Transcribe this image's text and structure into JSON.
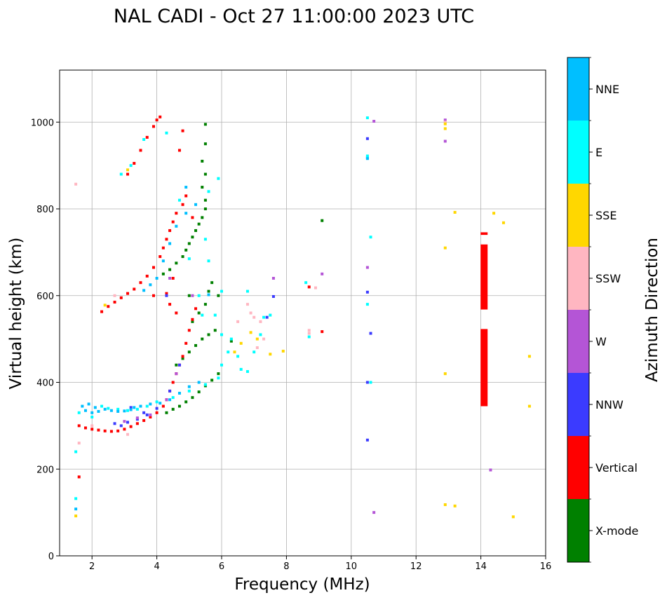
{
  "chart_data": {
    "type": "scatter",
    "title": "NAL CADI - Oct 27 11:00:00 2023 UTC",
    "xlabel": "Frequency (MHz)",
    "ylabel": "Virtual height (km)",
    "xlim": [
      1,
      16
    ],
    "ylim": [
      0,
      1120
    ],
    "xticks": [
      2,
      4,
      6,
      8,
      10,
      12,
      14,
      16
    ],
    "yticks": [
      0,
      200,
      400,
      600,
      800,
      1000
    ],
    "grid": true,
    "colorbar": {
      "label": "Azimuth Direction",
      "categories": [
        "X-mode",
        "Vertical",
        "NNW",
        "W",
        "SSW",
        "SSE",
        "E",
        "NNE"
      ],
      "colors": [
        "#008000",
        "#ff0000",
        "#3b3bff",
        "#b455d6",
        "#ffb6c1",
        "#ffd700",
        "#00ffff",
        "#00bfff"
      ]
    },
    "series": [
      {
        "name": "X-mode",
        "points": [
          [
            4.3,
            330
          ],
          [
            4.5,
            338
          ],
          [
            4.7,
            345
          ],
          [
            4.9,
            355
          ],
          [
            5.1,
            365
          ],
          [
            5.3,
            378
          ],
          [
            5.5,
            392
          ],
          [
            5.7,
            405
          ],
          [
            5.9,
            420
          ],
          [
            4.6,
            440
          ],
          [
            4.8,
            455
          ],
          [
            5.0,
            470
          ],
          [
            5.2,
            485
          ],
          [
            5.4,
            500
          ],
          [
            5.6,
            510
          ],
          [
            5.8,
            520
          ],
          [
            5.1,
            540
          ],
          [
            5.3,
            560
          ],
          [
            5.5,
            580
          ],
          [
            5.6,
            610
          ],
          [
            5.7,
            630
          ],
          [
            4.4,
            660
          ],
          [
            4.6,
            675
          ],
          [
            4.8,
            690
          ],
          [
            4.9,
            705
          ],
          [
            5.0,
            720
          ],
          [
            5.1,
            735
          ],
          [
            5.2,
            750
          ],
          [
            5.3,
            765
          ],
          [
            5.4,
            780
          ],
          [
            5.5,
            800
          ],
          [
            5.5,
            820
          ],
          [
            5.4,
            850
          ],
          [
            5.5,
            880
          ],
          [
            5.4,
            910
          ],
          [
            5.5,
            950
          ],
          [
            5.5,
            995
          ],
          [
            4.2,
            650
          ],
          [
            9.1,
            773
          ],
          [
            6.3,
            495
          ],
          [
            5.9,
            600
          ],
          [
            5.0,
            600
          ]
        ]
      },
      {
        "name": "Vertical",
        "points": [
          [
            1.6,
            300
          ],
          [
            1.8,
            295
          ],
          [
            2.0,
            292
          ],
          [
            2.2,
            290
          ],
          [
            2.4,
            288
          ],
          [
            2.6,
            287
          ],
          [
            2.8,
            288
          ],
          [
            3.0,
            292
          ],
          [
            3.2,
            298
          ],
          [
            3.4,
            305
          ],
          [
            3.6,
            312
          ],
          [
            3.8,
            320
          ],
          [
            4.0,
            330
          ],
          [
            4.2,
            345
          ],
          [
            4.3,
            360
          ],
          [
            4.4,
            380
          ],
          [
            4.5,
            400
          ],
          [
            4.6,
            420
          ],
          [
            4.7,
            440
          ],
          [
            4.8,
            460
          ],
          [
            4.9,
            490
          ],
          [
            5.0,
            520
          ],
          [
            5.1,
            545
          ],
          [
            5.2,
            570
          ],
          [
            4.4,
            580
          ],
          [
            4.6,
            560
          ],
          [
            2.3,
            563
          ],
          [
            2.5,
            575
          ],
          [
            2.7,
            585
          ],
          [
            2.9,
            595
          ],
          [
            3.1,
            605
          ],
          [
            3.3,
            615
          ],
          [
            3.5,
            630
          ],
          [
            3.7,
            645
          ],
          [
            3.9,
            665
          ],
          [
            4.1,
            690
          ],
          [
            4.2,
            710
          ],
          [
            4.3,
            730
          ],
          [
            4.4,
            750
          ],
          [
            4.5,
            770
          ],
          [
            4.6,
            790
          ],
          [
            4.8,
            810
          ],
          [
            4.9,
            830
          ],
          [
            3.1,
            880
          ],
          [
            3.3,
            905
          ],
          [
            3.5,
            935
          ],
          [
            3.7,
            965
          ],
          [
            3.9,
            990
          ],
          [
            4.0,
            1005
          ],
          [
            4.1,
            1012
          ],
          [
            4.7,
            935
          ],
          [
            4.8,
            980
          ],
          [
            1.6,
            182
          ],
          [
            8.7,
            620
          ],
          [
            9.1,
            517
          ],
          [
            5.1,
            780
          ],
          [
            4.3,
            605
          ],
          [
            3.9,
            600
          ],
          [
            4.5,
            640
          ]
        ]
      },
      {
        "name": "NNW",
        "points": [
          [
            2.7,
            305
          ],
          [
            2.9,
            300
          ],
          [
            3.1,
            308
          ],
          [
            3.4,
            315
          ],
          [
            3.7,
            325
          ],
          [
            4.0,
            340
          ],
          [
            4.4,
            380
          ],
          [
            4.7,
            440
          ],
          [
            4.3,
            600
          ],
          [
            10.5,
            918
          ],
          [
            10.5,
            962
          ],
          [
            10.5,
            608
          ],
          [
            10.6,
            513
          ],
          [
            10.5,
            400
          ],
          [
            10.5,
            267
          ],
          [
            7.6,
            598
          ],
          [
            7.4,
            550
          ],
          [
            3.2,
            342
          ],
          [
            3.6,
            330
          ]
        ]
      },
      {
        "name": "W",
        "points": [
          [
            3.0,
            310
          ],
          [
            3.4,
            318
          ],
          [
            3.8,
            325
          ],
          [
            4.3,
            360
          ],
          [
            4.6,
            420
          ],
          [
            5.1,
            600
          ],
          [
            9.1,
            650
          ],
          [
            10.5,
            665
          ],
          [
            12.9,
            1005
          ],
          [
            12.9,
            956
          ],
          [
            14.3,
            198
          ],
          [
            10.7,
            100
          ],
          [
            10.7,
            1002
          ],
          [
            7.6,
            640
          ],
          [
            4.4,
            640
          ]
        ]
      },
      {
        "name": "SSW",
        "points": [
          [
            1.5,
            857
          ],
          [
            1.6,
            260
          ],
          [
            2.0,
            300
          ],
          [
            3.1,
            280
          ],
          [
            6.8,
            580
          ],
          [
            6.9,
            560
          ],
          [
            7.0,
            550
          ],
          [
            7.2,
            540
          ],
          [
            7.3,
            500
          ],
          [
            7.1,
            480
          ],
          [
            8.7,
            520
          ],
          [
            8.7,
            513
          ],
          [
            8.9,
            618
          ],
          [
            2.7,
            600
          ],
          [
            6.5,
            540
          ],
          [
            12.9,
            1000
          ]
        ]
      },
      {
        "name": "SSE",
        "points": [
          [
            1.5,
            92
          ],
          [
            2.4,
            578
          ],
          [
            6.6,
            490
          ],
          [
            6.9,
            515
          ],
          [
            7.1,
            500
          ],
          [
            7.5,
            465
          ],
          [
            7.9,
            472
          ],
          [
            12.9,
            420
          ],
          [
            12.9,
            710
          ],
          [
            13.2,
            792
          ],
          [
            14.4,
            790
          ],
          [
            14.7,
            768
          ],
          [
            15.5,
            460
          ],
          [
            15.5,
            345
          ],
          [
            12.9,
            118
          ],
          [
            13.2,
            115
          ],
          [
            15.0,
            90
          ],
          [
            12.9,
            985
          ],
          [
            12.9,
            996
          ],
          [
            6.4,
            470
          ],
          [
            3.1,
            890
          ]
        ]
      },
      {
        "name": "E",
        "points": [
          [
            1.6,
            330
          ],
          [
            2.0,
            320
          ],
          [
            2.3,
            345
          ],
          [
            2.5,
            340
          ],
          [
            2.8,
            338
          ],
          [
            3.1,
            335
          ],
          [
            3.4,
            338
          ],
          [
            3.7,
            345
          ],
          [
            4.0,
            355
          ],
          [
            4.5,
            365
          ],
          [
            5.0,
            380
          ],
          [
            5.5,
            395
          ],
          [
            5.9,
            410
          ],
          [
            6.0,
            440
          ],
          [
            6.2,
            470
          ],
          [
            6.3,
            500
          ],
          [
            6.5,
            460
          ],
          [
            6.6,
            430
          ],
          [
            6.8,
            425
          ],
          [
            7.0,
            470
          ],
          [
            7.2,
            510
          ],
          [
            7.3,
            550
          ],
          [
            7.5,
            555
          ],
          [
            6.0,
            510
          ],
          [
            5.8,
            555
          ],
          [
            5.4,
            555
          ],
          [
            5.3,
            600
          ],
          [
            6.0,
            610
          ],
          [
            6.8,
            610
          ],
          [
            2.9,
            880
          ],
          [
            3.2,
            900
          ],
          [
            3.6,
            960
          ],
          [
            4.3,
            975
          ],
          [
            4.7,
            820
          ],
          [
            5.6,
            840
          ],
          [
            5.9,
            870
          ],
          [
            8.6,
            630
          ],
          [
            8.7,
            505
          ],
          [
            10.5,
            922
          ],
          [
            10.5,
            580
          ],
          [
            10.5,
            1010
          ],
          [
            10.6,
            735
          ],
          [
            10.6,
            400
          ],
          [
            1.5,
            132
          ],
          [
            1.5,
            240
          ],
          [
            5.6,
            680
          ],
          [
            5.0,
            685
          ],
          [
            5.5,
            730
          ]
        ]
      },
      {
        "name": "NNE",
        "points": [
          [
            1.7,
            345
          ],
          [
            1.8,
            335
          ],
          [
            2.0,
            330
          ],
          [
            2.2,
            333
          ],
          [
            2.4,
            338
          ],
          [
            2.6,
            335
          ],
          [
            2.8,
            333
          ],
          [
            3.0,
            334
          ],
          [
            3.2,
            337
          ],
          [
            3.5,
            345
          ],
          [
            3.8,
            350
          ],
          [
            4.1,
            352
          ],
          [
            4.4,
            360
          ],
          [
            4.7,
            375
          ],
          [
            5.0,
            390
          ],
          [
            5.3,
            400
          ],
          [
            1.9,
            350
          ],
          [
            2.1,
            342
          ],
          [
            3.3,
            342
          ],
          [
            3.6,
            612
          ],
          [
            3.8,
            625
          ],
          [
            4.0,
            640
          ],
          [
            4.2,
            680
          ],
          [
            4.4,
            720
          ],
          [
            4.6,
            760
          ],
          [
            4.9,
            790
          ],
          [
            5.2,
            810
          ],
          [
            4.9,
            850
          ],
          [
            5.6,
            602
          ],
          [
            10.5,
            916
          ],
          [
            1.5,
            108
          ]
        ]
      }
    ],
    "vertical_bands": [
      {
        "series": "Vertical",
        "x": 14.1,
        "y_from": 345,
        "y_to": 523
      },
      {
        "series": "Vertical",
        "x": 14.1,
        "y_from": 568,
        "y_to": 718
      },
      {
        "series": "Vertical",
        "x": 14.1,
        "y_from": 740,
        "y_to": 746
      }
    ]
  }
}
